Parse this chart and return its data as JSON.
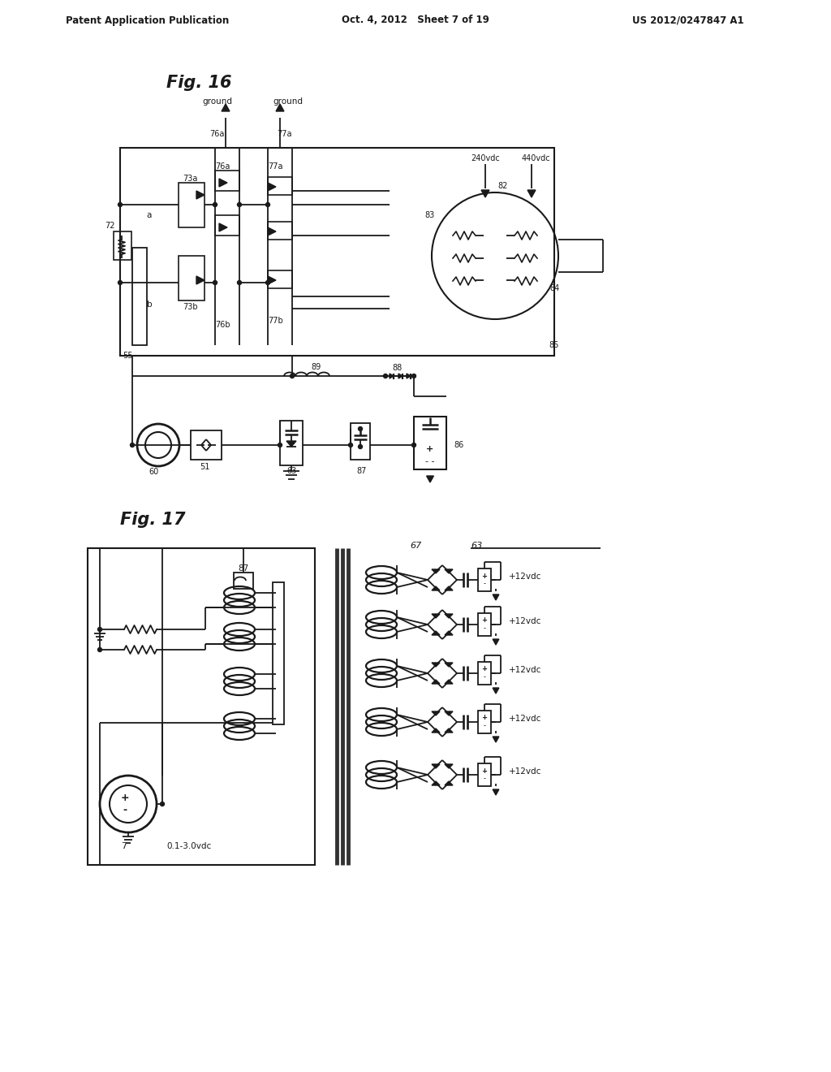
{
  "bg_color": "#ffffff",
  "line_color": "#1a1a1a",
  "header_left": "Patent Application Publication",
  "header_center": "Oct. 4, 2012   Sheet 7 of 19",
  "header_right": "US 2012/0247847 A1",
  "fig16_label": "Fig. 16",
  "fig17_label": "Fig. 17"
}
